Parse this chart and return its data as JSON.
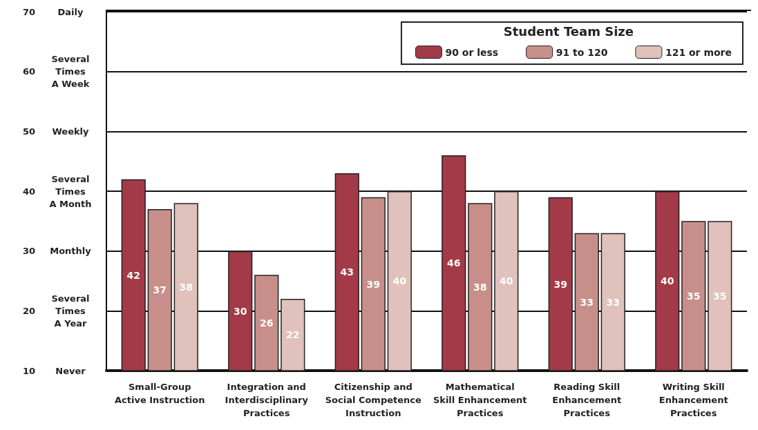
{
  "chart_data": {
    "type": "bar",
    "categories": [
      "Small-Group\nActive Instruction",
      "Integration and\nInterdisciplinary\nPractices",
      "Citizenship and\nSocial Competence\nInstruction",
      "Mathematical\nSkill Enhancement\nPractices",
      "Reading Skill\nEnhancement\nPractices",
      "Writing Skill\nEnhancement\nPractices"
    ],
    "series": [
      {
        "name": "90 or less",
        "color": "#a33a47",
        "values": [
          42,
          30,
          43,
          46,
          39,
          40
        ]
      },
      {
        "name": "91 to 120",
        "color": "#c88f8a",
        "values": [
          37,
          26,
          39,
          38,
          33,
          35
        ]
      },
      {
        "name": "121 or more",
        "color": "#e0c1bc",
        "values": [
          38,
          22,
          40,
          40,
          33,
          35
        ]
      }
    ],
    "legend_title": "Student Team Size",
    "legend": "top right",
    "data_labels": true,
    "grid": "y",
    "ylim": [
      10,
      70
    ],
    "yticks": [
      10,
      20,
      30,
      40,
      50,
      60,
      70
    ],
    "annotations": [
      "Never",
      "Several\nTimes\nA Year",
      "Monthly",
      "Several\nTimes\nA Month",
      "Weekly",
      "Several\nTimes\nA Week",
      "Daily"
    ]
  }
}
